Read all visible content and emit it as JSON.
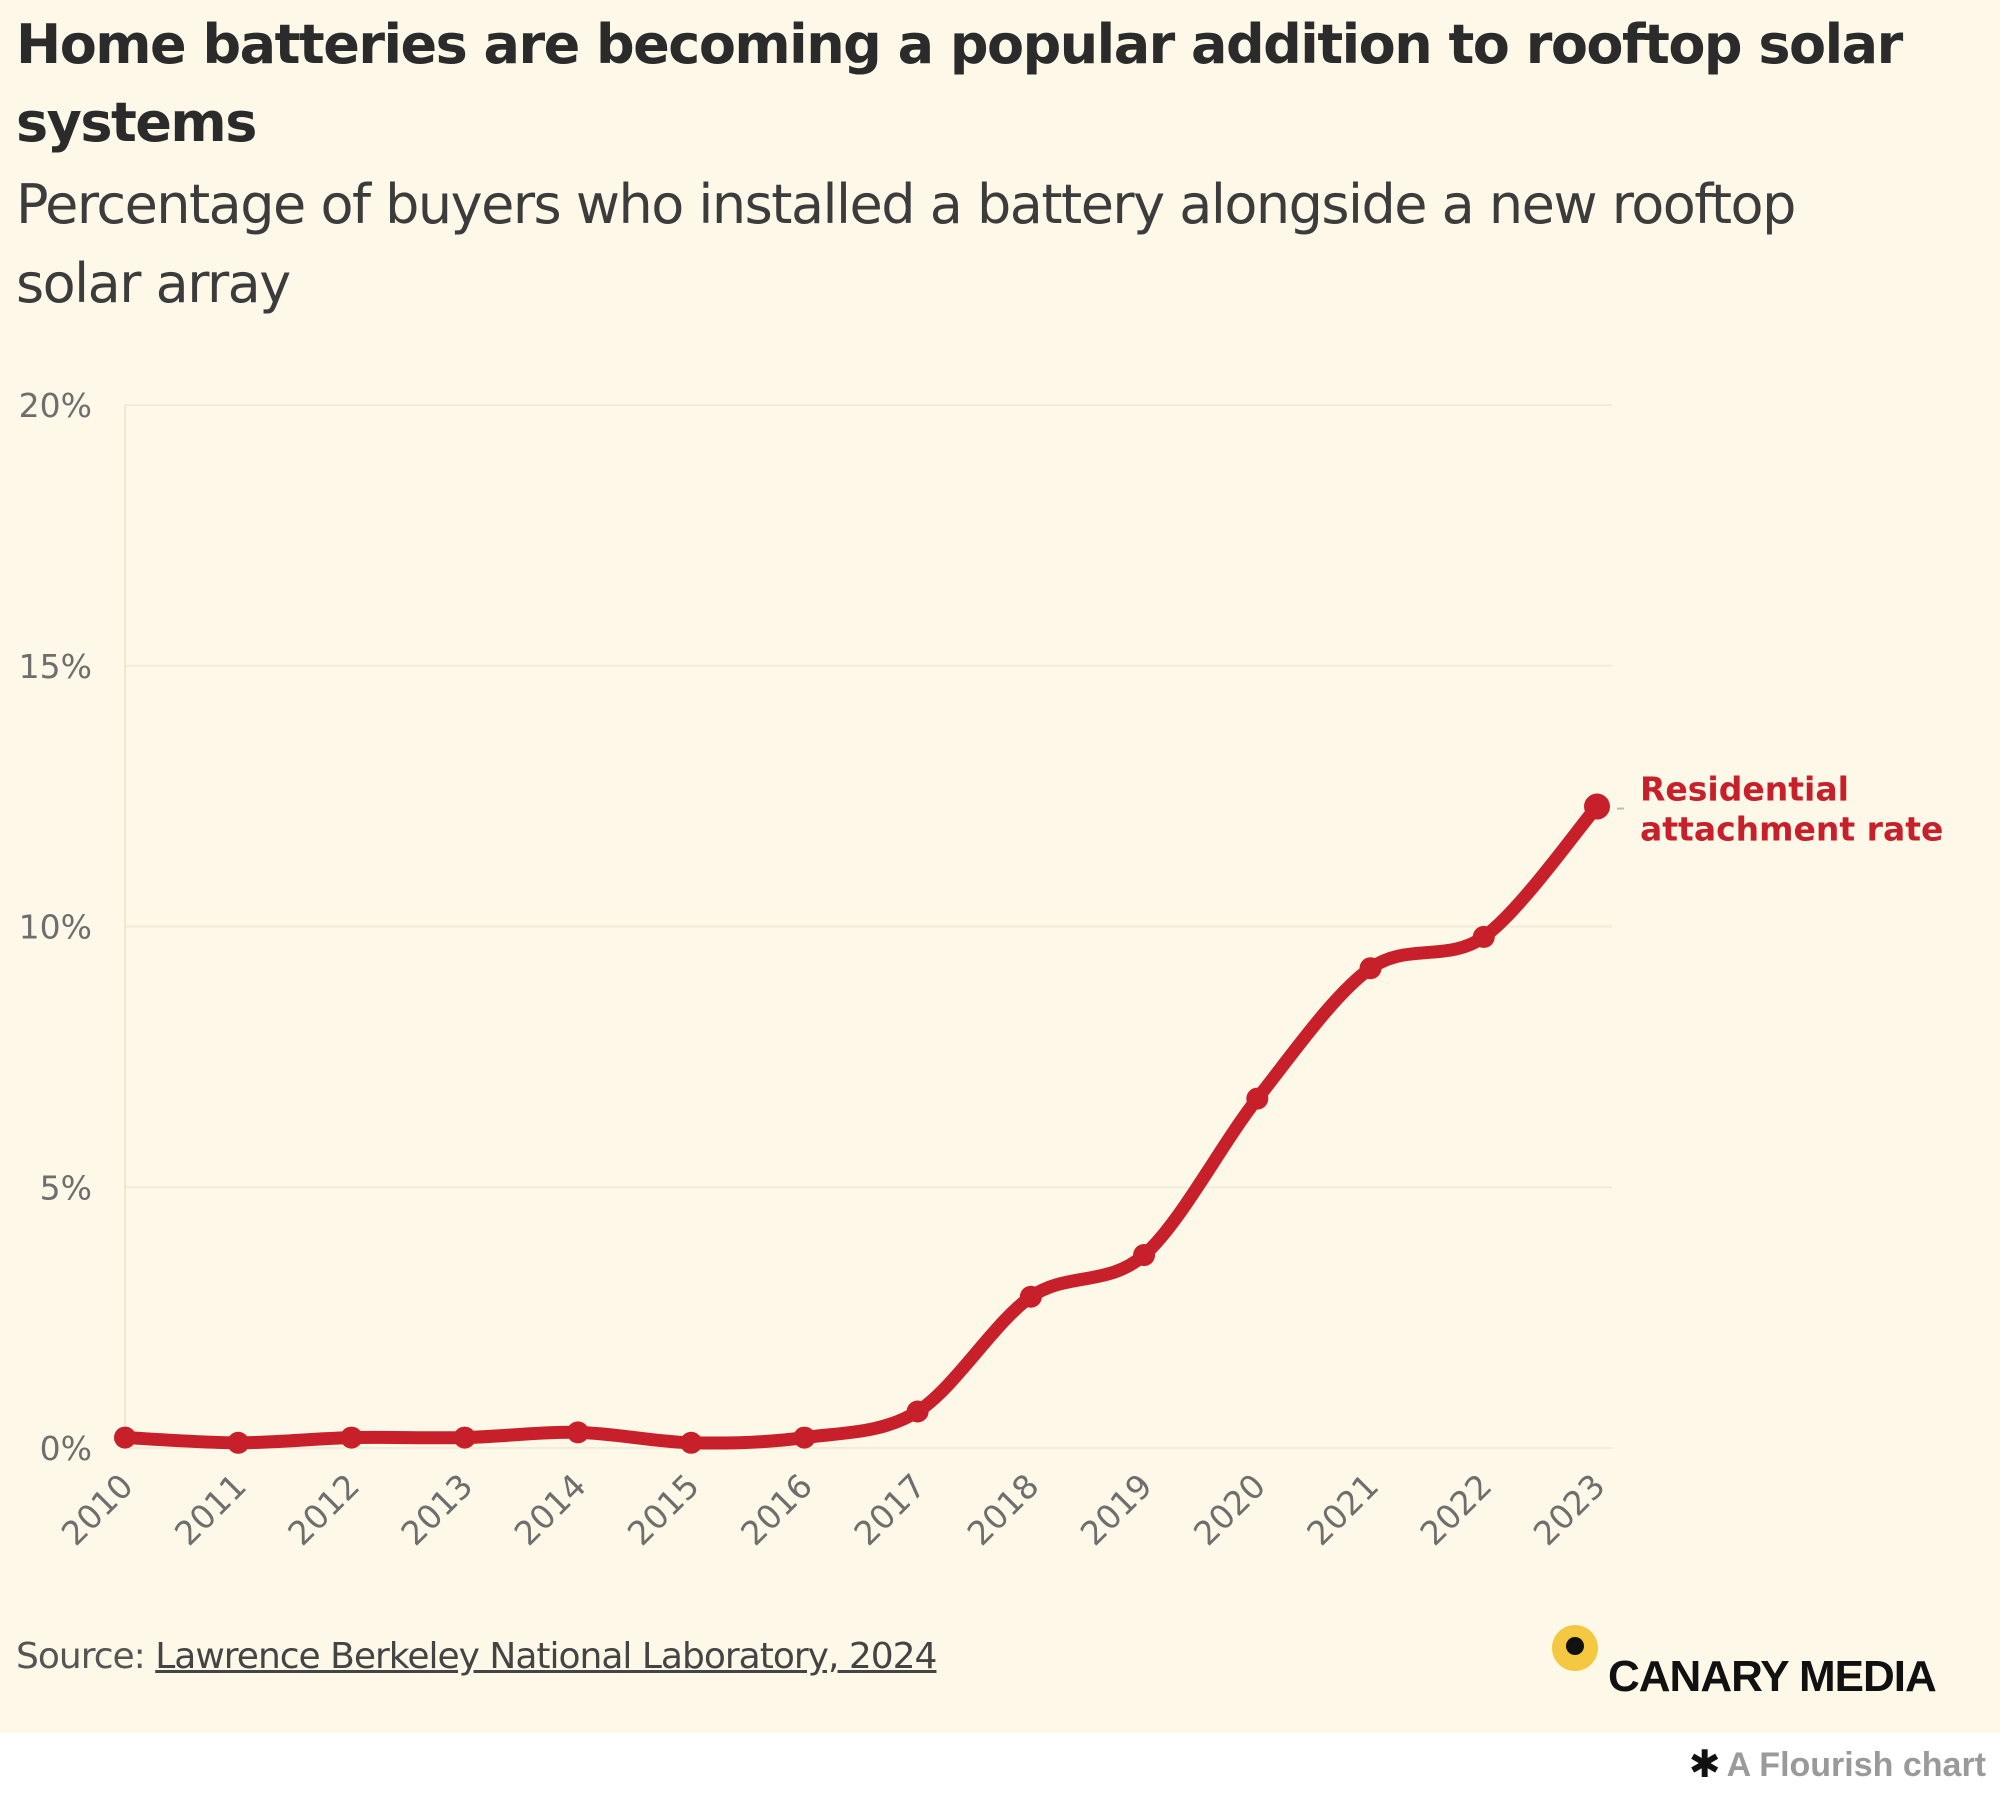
{
  "chart_data": {
    "type": "line",
    "title": "Home batteries are becoming a popular addition to rooftop solar systems",
    "subtitle": "Percentage of buyers who installed a battery alongside a new rooftop solar array",
    "xlabel": "",
    "ylabel": "",
    "x": [
      "2010",
      "2011",
      "2012",
      "2013",
      "2014",
      "2015",
      "2016",
      "2017",
      "2018",
      "2019",
      "2020",
      "2021",
      "2022",
      "2023"
    ],
    "series": [
      {
        "name": "Residential attachment rate",
        "color": "#c8202a",
        "values": [
          0.2,
          0.1,
          0.2,
          0.2,
          0.3,
          0.1,
          0.2,
          0.7,
          2.9,
          3.7,
          6.7,
          9.2,
          9.8,
          12.3
        ]
      }
    ],
    "ylim": [
      0,
      20
    ],
    "yticks": [
      0,
      5,
      10,
      15,
      20
    ],
    "ytick_labels": [
      "0%",
      "5%",
      "10%",
      "15%",
      "20%"
    ],
    "grid": true,
    "legend": "direct label at line end (right)"
  },
  "series_label_lines": [
    "Residential",
    "attachment rate"
  ],
  "source": {
    "prefix": "Source: ",
    "link_text": "Lawrence Berkeley National Laboratory, 2024"
  },
  "logo": {
    "text": "CANARY MEDIA"
  },
  "footer": {
    "icon": "flourish-asterisk-icon",
    "text": "A Flourish chart"
  },
  "colors": {
    "background": "#fdf8e8",
    "line": "#c8202a",
    "logo_dot": "#f5c842"
  }
}
